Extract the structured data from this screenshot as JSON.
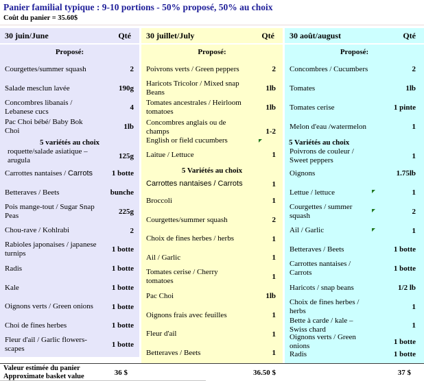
{
  "page": {
    "title": "Panier familial typique : 9-10 portions - 50% proposé, 50% au choix",
    "subtitle": "Coût du panier = 35.60$"
  },
  "colors": {
    "title_text": "#1f1f99",
    "june_bg": "#e6e6fa",
    "july_bg": "#ffffcc",
    "august_bg": "#ccffff",
    "choice_marker_green": "#217821"
  },
  "columns": [
    {
      "header": "30 juin/June",
      "qty_header": "Qté",
      "bg": "#e6e6fa",
      "rows": [
        {
          "type": "section",
          "align": "center",
          "text": "Proposé:",
          "h": 22
        },
        {
          "type": "item",
          "name": "Courgettes/summer squash",
          "qty": "2",
          "h": 28
        },
        {
          "type": "item",
          "name": "Salade mesclun lavée",
          "qty": "190g",
          "h": 28
        },
        {
          "type": "item",
          "name": "Concombres libanais / Lebanese cucs",
          "qty": "4",
          "h": 28
        },
        {
          "type": "item",
          "name": "Pac Choi bébé/ Baby Bok Choi",
          "qty": "1lb",
          "h": 28
        },
        {
          "type": "section",
          "align": "center",
          "text": "5 variétés au choix",
          "h": 18
        },
        {
          "type": "item",
          "name": "roquette/salade asiatique – arugula",
          "qty": "125g",
          "h": 22,
          "indent": true
        },
        {
          "type": "item",
          "name": "Carrottes nantaises / ",
          "name_sans": "Carrots",
          "qty": "1 botte",
          "h": 28
        },
        {
          "type": "item",
          "name": "Betteraves / Beets",
          "qty": "bunche",
          "h": 28
        },
        {
          "type": "item",
          "name": "Pois mange-tout / Sugar Snap Peas",
          "qty": "225g",
          "h": 28
        },
        {
          "type": "item",
          "name": "Chou-rave / Kohlrabi",
          "qty": "2",
          "h": 27
        },
        {
          "type": "item",
          "name": "Rabioles japonaises / japanese turnips",
          "qty": "1 botte",
          "h": 28
        },
        {
          "type": "item",
          "name": "Radis",
          "qty": "1 botte",
          "h": 28
        },
        {
          "type": "item",
          "name": "Kale",
          "qty": "1 botte",
          "h": 28
        },
        {
          "type": "item",
          "name": "Oignons verts / Green onions",
          "qty": "1 botte",
          "h": 27
        },
        {
          "type": "item",
          "name": "Choi de fines herbes",
          "qty": "1 botte",
          "h": 28
        },
        {
          "type": "item",
          "name": "Fleur d'ail / Garlic flowers-scapes",
          "qty": "1 botte",
          "h": 28
        }
      ]
    },
    {
      "header": "30 juillet/July",
      "qty_header": "Qté",
      "bg": "#ffffcc",
      "rows": [
        {
          "type": "section",
          "align": "center",
          "text": "Proposé:",
          "h": 22
        },
        {
          "type": "item",
          "name": "Poivrons verts / Green peppers",
          "qty": "2",
          "h": 28
        },
        {
          "type": "item",
          "name": "Haricots Tricolor / Mixed snap Beans",
          "qty": "1lb",
          "h": 28
        },
        {
          "type": "item",
          "name": "Tomates ancestrales / Heirloom tomatoes",
          "qty": "1lb",
          "h": 28
        },
        {
          "type": "item2",
          "name": "Concombres anglais ou de champs",
          "name_line2": "English or field cucumbers",
          "qty": "1-2",
          "h": 42,
          "marker_below": true
        },
        {
          "type": "item",
          "name": "Laitue / Lettuce",
          "qty": "1",
          "h": 26
        },
        {
          "type": "section",
          "align": "center",
          "text": "5 Variétés au choix",
          "h": 19
        },
        {
          "type": "item",
          "name_sans": "Carrottes nantaises / Carrots",
          "qty": "1",
          "h": 21
        },
        {
          "type": "item",
          "name": "Broccoli",
          "qty": "1",
          "h": 28
        },
        {
          "type": "item",
          "name": "Courgettes/summer squash",
          "qty": "2",
          "h": 28
        },
        {
          "type": "item",
          "name": "Choix de fines herbes / herbs",
          "qty": "1",
          "h": 27
        },
        {
          "type": "item",
          "name": "Ail / Garlic",
          "qty": "1",
          "h": 28
        },
        {
          "type": "item",
          "name": "Tomates cerise / Cherry tomatoes",
          "qty": "1",
          "h": 28
        },
        {
          "type": "item",
          "name": "Pac Choi",
          "qty": "1lb",
          "h": 28
        },
        {
          "type": "item",
          "name": "Oignons frais avec feuilles",
          "qty": "1",
          "h": 28
        },
        {
          "type": "item",
          "name": "Fleur d'ail",
          "qty": "1",
          "h": 27
        },
        {
          "type": "item",
          "name": "Betteraves / Beets",
          "qty": "1",
          "h": 28
        }
      ]
    },
    {
      "header": "30 août/august",
      "qty_header": "Qté",
      "bg": "#ccffff",
      "rows": [
        {
          "type": "section",
          "align": "center",
          "text": "Proposé:",
          "h": 22
        },
        {
          "type": "item",
          "name": "Concombres / Cucumbers",
          "qty": "2",
          "h": 28
        },
        {
          "type": "item",
          "name": "Tomates",
          "qty": "1lb",
          "h": 28
        },
        {
          "type": "item",
          "name": "Tomates cerise",
          "qty": "1 pinte",
          "h": 28
        },
        {
          "type": "item",
          "name": "Melon d'eau /watermelon",
          "qty": "1",
          "h": 28
        },
        {
          "type": "section",
          "align": "left",
          "text": "5 Variétés au choix",
          "h": 18
        },
        {
          "type": "item",
          "name": "Poivrons de couleur / Sweet peppers",
          "qty": "1",
          "h": 22
        },
        {
          "type": "item",
          "name": "Oignons",
          "qty": "1.75lb",
          "h": 28
        },
        {
          "type": "item",
          "name": "Lettue / lettuce",
          "qty": "1",
          "h": 28,
          "marker": true
        },
        {
          "type": "item",
          "name": "Courgettes / summer squash",
          "qty": "2",
          "h": 28,
          "marker": true
        },
        {
          "type": "item",
          "name": "Ail / Garlic",
          "qty": "1",
          "h": 27,
          "marker": true
        },
        {
          "type": "item",
          "name": "Betteraves / Beets",
          "qty": "1 botte",
          "h": 28
        },
        {
          "type": "item",
          "name": "Carrottes nantaises / Carrots",
          "qty": "1 botte",
          "h": 28
        },
        {
          "type": "item",
          "name": "Haricots / snap beans",
          "qty": "1/2 lb",
          "h": 28
        },
        {
          "type": "item",
          "name": "Choix de fines herbes / herbs",
          "qty": "1",
          "h": 27
        },
        {
          "type": "item",
          "name": "Bette à carde / kale – Swiss chard",
          "qty": "1",
          "h": 28
        },
        {
          "type": "item",
          "name": "Oignons verts / Green onions",
          "qty": "1 botte",
          "h": 20
        },
        {
          "type": "item",
          "name": "Radis",
          "qty": "1 botte",
          "h": 16
        }
      ]
    }
  ],
  "footer": {
    "label_line1": "Valeur estimée du panier",
    "label_line2": "Approximate basket value",
    "values": [
      "36 $",
      "36.50 $",
      "37 $"
    ]
  }
}
